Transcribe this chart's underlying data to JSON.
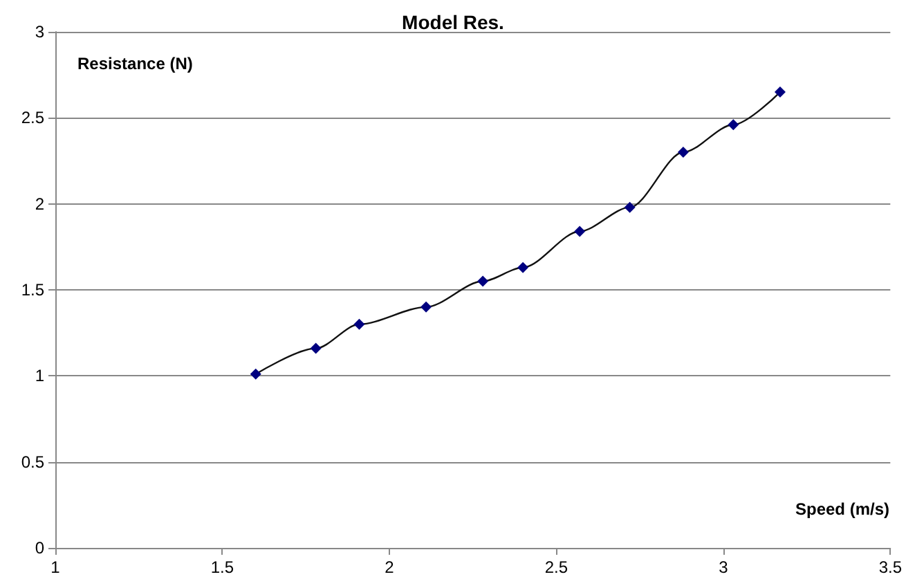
{
  "chart_data": {
    "type": "line",
    "title": "Model Res.",
    "xlabel": "Speed (m/s)",
    "ylabel": "Resistance (N)",
    "x": [
      1.6,
      1.78,
      1.91,
      2.11,
      2.28,
      2.4,
      2.57,
      2.72,
      2.88,
      3.03,
      3.17
    ],
    "series": [
      {
        "color": "#000080",
        "values": [
          1.01,
          1.16,
          1.3,
          1.4,
          1.55,
          1.63,
          1.84,
          1.98,
          2.3,
          2.46,
          2.65
        ]
      }
    ],
    "xlim": [
      1,
      3.5
    ],
    "xticks": [
      1,
      1.5,
      2,
      2.5,
      3,
      3.5
    ],
    "ylim": [
      0,
      3
    ],
    "yticks": [
      0,
      0.5,
      1,
      1.5,
      2,
      2.5,
      3
    ],
    "grid": "y",
    "marker": "diamond",
    "line_style": "solid"
  }
}
